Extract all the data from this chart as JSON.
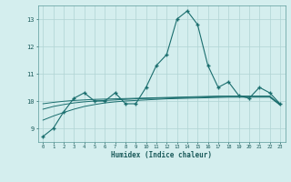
{
  "x": [
    0,
    1,
    2,
    3,
    4,
    5,
    6,
    7,
    8,
    9,
    10,
    11,
    12,
    13,
    14,
    15,
    16,
    17,
    18,
    19,
    20,
    21,
    22,
    23
  ],
  "y_main": [
    8.7,
    9.0,
    9.6,
    10.1,
    10.3,
    10.0,
    10.0,
    10.3,
    9.9,
    9.9,
    10.5,
    11.3,
    11.7,
    13.0,
    13.3,
    12.8,
    11.3,
    10.5,
    10.7,
    10.2,
    10.1,
    10.5,
    10.3,
    9.9
  ],
  "y_trend1": [
    9.3,
    9.45,
    9.58,
    9.7,
    9.8,
    9.87,
    9.93,
    9.97,
    10.0,
    10.02,
    10.04,
    10.06,
    10.08,
    10.09,
    10.1,
    10.11,
    10.12,
    10.13,
    10.14,
    10.14,
    10.14,
    10.14,
    10.14,
    9.85
  ],
  "y_trend2": [
    9.7,
    9.8,
    9.87,
    9.93,
    9.97,
    10.0,
    10.02,
    10.04,
    10.06,
    10.08,
    10.09,
    10.1,
    10.11,
    10.12,
    10.13,
    10.14,
    10.15,
    10.16,
    10.17,
    10.17,
    10.17,
    10.17,
    10.17,
    9.87
  ],
  "y_trend3": [
    9.9,
    9.95,
    9.99,
    10.02,
    10.04,
    10.06,
    10.07,
    10.08,
    10.09,
    10.1,
    10.11,
    10.12,
    10.13,
    10.14,
    10.15,
    10.16,
    10.17,
    10.18,
    10.18,
    10.18,
    10.18,
    10.18,
    10.18,
    9.88
  ],
  "bg_color": "#d4eeee",
  "grid_color": "#b0d4d4",
  "line_color": "#1a6e6e",
  "xlabel": "Humidex (Indice chaleur)",
  "ylim": [
    8.5,
    13.5
  ],
  "xlim": [
    -0.5,
    23.5
  ],
  "yticks": [
    9,
    10,
    11,
    12,
    13
  ],
  "xticks": [
    0,
    1,
    2,
    3,
    4,
    5,
    6,
    7,
    8,
    9,
    10,
    11,
    12,
    13,
    14,
    15,
    16,
    17,
    18,
    19,
    20,
    21,
    22,
    23
  ]
}
